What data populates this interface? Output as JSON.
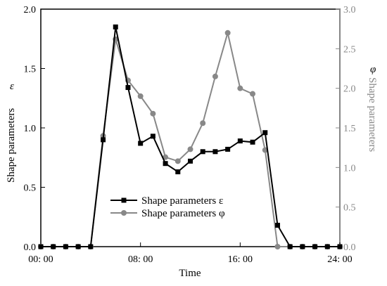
{
  "chart_data": {
    "type": "line",
    "xlabel": "Time",
    "x_tick_labels": [
      "00: 00",
      "08: 00",
      "16: 00",
      "24: 00"
    ],
    "x_ticks": [
      0,
      8,
      16,
      24
    ],
    "xlim": [
      0,
      24
    ],
    "y_left": {
      "label": "Shape parameters",
      "symbol": "ε",
      "lim": [
        0,
        2.0
      ],
      "ticks": [
        0,
        0.5,
        1.0,
        1.5,
        2.0
      ],
      "tick_labels": [
        "0.0",
        "0.5",
        "1.0",
        "1.5",
        "2.0"
      ]
    },
    "y_right": {
      "label": "Shape parameters",
      "symbol": "φ",
      "lim": [
        0,
        3.0
      ],
      "ticks": [
        0,
        0.5,
        1.0,
        1.5,
        2.0,
        2.5,
        3.0
      ],
      "tick_labels": [
        "0.0",
        "0.5",
        "1.0",
        "1.5",
        "2.0",
        "2.5",
        "3.0"
      ]
    },
    "legend_position": "lower-center",
    "series": [
      {
        "name": "Shape parameters ε",
        "axis": "left",
        "color": "#000000",
        "marker": "square",
        "x": [
          0,
          1,
          2,
          3,
          4,
          5,
          6,
          7,
          8,
          9,
          10,
          11,
          12,
          13,
          14,
          15,
          16,
          17,
          18,
          19,
          20,
          21,
          22,
          23,
          24
        ],
        "values": [
          0,
          0,
          0,
          0,
          0,
          0.9,
          1.85,
          1.34,
          0.87,
          0.93,
          0.7,
          0.63,
          0.72,
          0.8,
          0.8,
          0.82,
          0.89,
          0.88,
          0.96,
          0.18,
          0,
          0,
          0,
          0,
          0
        ]
      },
      {
        "name": "Shape parameters φ",
        "axis": "right",
        "color": "#888888",
        "marker": "circle",
        "x": [
          0,
          1,
          2,
          3,
          4,
          5,
          6,
          7,
          8,
          9,
          10,
          11,
          12,
          13,
          14,
          15,
          16,
          17,
          18,
          19,
          20,
          21,
          22,
          23,
          24
        ],
        "values": [
          0,
          0,
          0,
          0,
          0,
          1.4,
          2.62,
          2.1,
          1.9,
          1.68,
          1.13,
          1.08,
          1.23,
          1.56,
          2.15,
          2.7,
          2.0,
          1.93,
          1.22,
          0,
          0,
          0,
          0,
          0,
          0
        ]
      }
    ]
  }
}
